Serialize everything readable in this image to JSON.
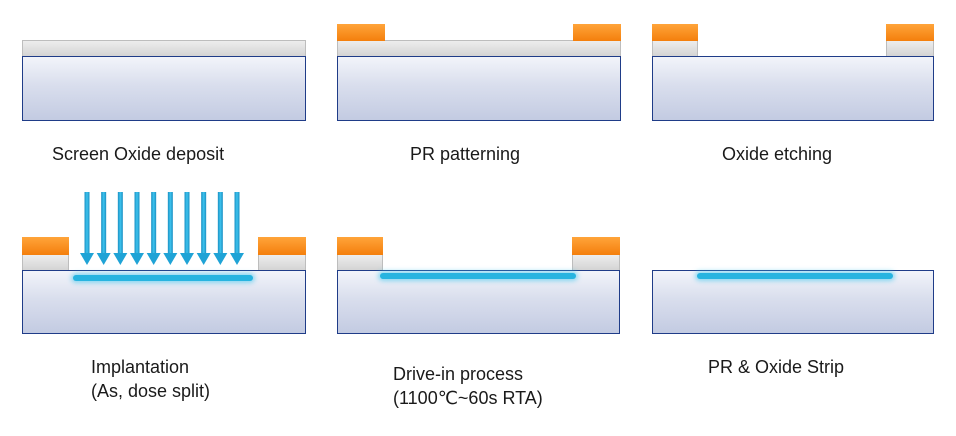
{
  "steps": [
    {
      "label": "Screen Oxide deposit"
    },
    {
      "label": "PR patterning"
    },
    {
      "label": "Oxide etching"
    },
    {
      "label_line1": "Implantation",
      "label_line2": "(As,  dose split)"
    },
    {
      "label_line1": "Drive-in process",
      "label_line2": "(1100℃~60s RTA)"
    },
    {
      "label": "PR & Oxide Strip"
    }
  ],
  "colors": {
    "substrate": "#d9deed",
    "substrate_border": "#1f3c88",
    "oxide": "#d9d9d9",
    "photoresist": "#f7860f",
    "implant": "#27b4e0",
    "ion_arrows": "#1fa3d6"
  },
  "implant_arrow_count": 10
}
